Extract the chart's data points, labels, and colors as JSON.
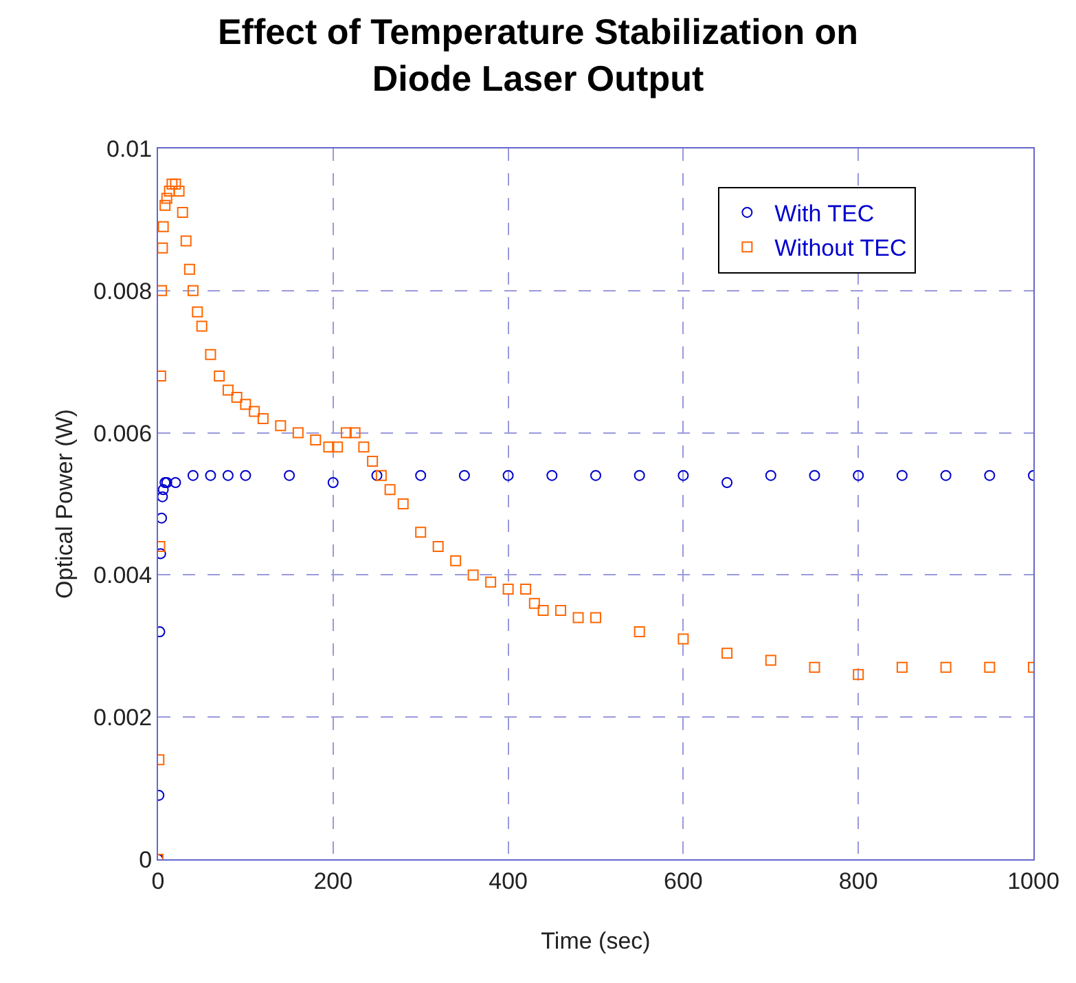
{
  "chart_data": {
    "type": "scatter",
    "title": "Effect of Temperature Stabilization on\nDiode Laser Output",
    "xlabel": "Time (sec)",
    "ylabel": "Optical Power (W)",
    "xlim": [
      0,
      1000
    ],
    "xticks": [
      0,
      200,
      400,
      600,
      800,
      1000
    ],
    "ylim": [
      0,
      0.01
    ],
    "yticks": [
      0,
      0.002,
      0.004,
      0.006,
      0.008,
      0.01
    ],
    "grid": true,
    "legend": "top right",
    "series": [
      {
        "name": "With TEC",
        "color": "#0000cc",
        "marker": "circle",
        "x": [
          0,
          1,
          2,
          3,
          4,
          5,
          6,
          8,
          10,
          20,
          40,
          60,
          80,
          100,
          150,
          200,
          250,
          300,
          350,
          400,
          450,
          500,
          550,
          600,
          650,
          700,
          750,
          800,
          850,
          900,
          950,
          1000
        ],
        "values": [
          0,
          0.0009,
          0.0032,
          0.0043,
          0.0048,
          0.0051,
          0.0052,
          0.0053,
          0.0053,
          0.0053,
          0.0054,
          0.0054,
          0.0054,
          0.0054,
          0.0054,
          0.0053,
          0.0054,
          0.0054,
          0.0054,
          0.0054,
          0.0054,
          0.0054,
          0.0054,
          0.0054,
          0.0053,
          0.0054,
          0.0054,
          0.0054,
          0.0054,
          0.0054,
          0.0054,
          0.0054
        ]
      },
      {
        "name": "Without TEC",
        "color": "#ff6600",
        "marker": "square",
        "x": [
          0,
          1,
          2,
          3,
          4,
          5,
          6,
          8,
          10,
          13,
          16,
          20,
          24,
          28,
          32,
          36,
          40,
          45,
          50,
          60,
          70,
          80,
          90,
          100,
          110,
          120,
          140,
          160,
          180,
          195,
          205,
          215,
          225,
          235,
          245,
          255,
          265,
          280,
          300,
          320,
          340,
          360,
          380,
          400,
          420,
          430,
          440,
          460,
          480,
          500,
          550,
          600,
          650,
          700,
          750,
          800,
          850,
          900,
          950,
          1000
        ],
        "values": [
          0,
          0.0014,
          0.0044,
          0.0068,
          0.008,
          0.0086,
          0.0089,
          0.0092,
          0.0093,
          0.0094,
          0.0095,
          0.0095,
          0.0094,
          0.0091,
          0.0087,
          0.0083,
          0.008,
          0.0077,
          0.0075,
          0.0071,
          0.0068,
          0.0066,
          0.0065,
          0.0064,
          0.0063,
          0.0062,
          0.0061,
          0.006,
          0.0059,
          0.0058,
          0.0058,
          0.006,
          0.006,
          0.0058,
          0.0056,
          0.0054,
          0.0052,
          0.005,
          0.0046,
          0.0044,
          0.0042,
          0.004,
          0.0039,
          0.0038,
          0.0038,
          0.0036,
          0.0035,
          0.0035,
          0.0034,
          0.0034,
          0.0032,
          0.0031,
          0.0029,
          0.0028,
          0.0027,
          0.0026,
          0.0027,
          0.0027,
          0.0027,
          0.0027
        ]
      }
    ]
  }
}
